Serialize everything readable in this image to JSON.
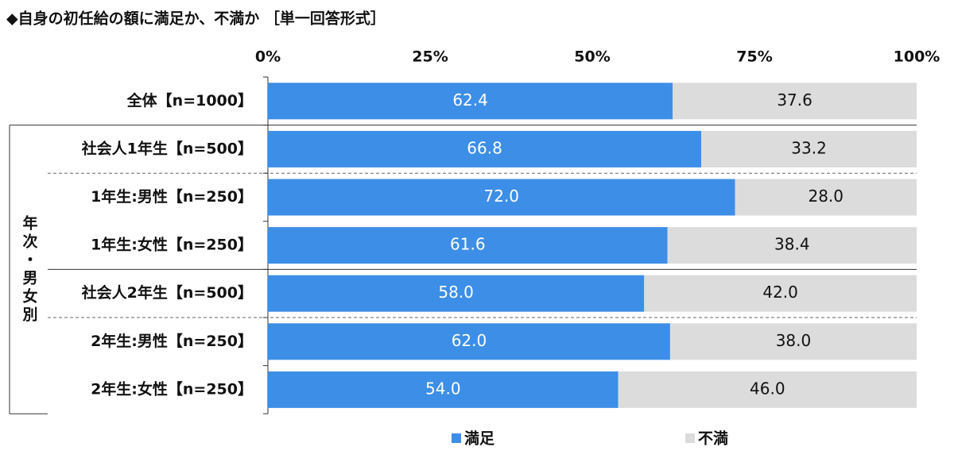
{
  "chart_data": {
    "type": "stacked-bar-horizontal",
    "title": "◆自身の初任給の額に満足か、不満か ［単一回答形式］",
    "group_label": "年次・男女別",
    "categories": [
      "全体【n=1000】",
      "社会人1年生【n=500】",
      "1年生:男性【n=250】",
      "1年生:女性【n=250】",
      "社会人2年生【n=500】",
      "2年生:男性【n=250】",
      "2年生:女性【n=250】"
    ],
    "series": [
      {
        "name": "満足",
        "color": "#3d8ee6",
        "values": [
          62.4,
          66.8,
          72.0,
          61.6,
          58.0,
          62.0,
          54.0
        ],
        "value_labels": [
          "62.4",
          "66.8",
          "72.0",
          "61.6",
          "58.0",
          "62.0",
          "54.0"
        ]
      },
      {
        "name": "不満",
        "color": "#dcdcdc",
        "values": [
          37.6,
          33.2,
          28.0,
          38.4,
          42.0,
          38.0,
          46.0
        ],
        "value_labels": [
          "37.6",
          "33.2",
          "28.0",
          "38.4",
          "42.0",
          "38.0",
          "46.0"
        ]
      }
    ],
    "xlim": [
      0,
      100
    ],
    "xticks": [
      {
        "value": 0,
        "label": "0%"
      },
      {
        "value": 25,
        "label": "25%"
      },
      {
        "value": 50,
        "label": "50%"
      },
      {
        "value": 75,
        "label": "75%"
      },
      {
        "value": 100,
        "label": "100%"
      }
    ]
  }
}
